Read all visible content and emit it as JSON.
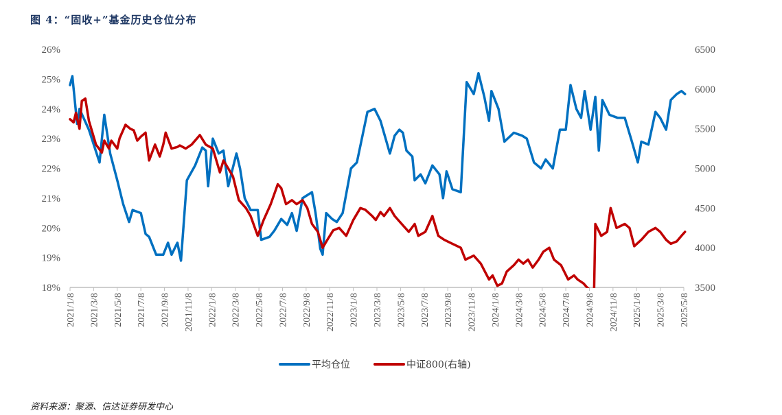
{
  "title": "图 4：“固收+”基金历史仓位分布",
  "source": "资料来源：聚源、信达证券研发中心",
  "chart_data": {
    "type": "line",
    "x_unit": "months since 2021/1/8",
    "xlim": [
      0,
      52
    ],
    "x_tick_labels": [
      "2021/1/8",
      "2021/3/8",
      "2021/5/8",
      "2021/7/8",
      "2021/9/8",
      "2021/11/8",
      "2022/1/8",
      "2022/3/8",
      "2022/5/8",
      "2022/7/8",
      "2022/9/8",
      "2022/11/8",
      "2023/1/8",
      "2023/3/8",
      "2023/5/8",
      "2023/7/8",
      "2023/9/8",
      "2023/11/8",
      "2024/1/8",
      "2024/3/8",
      "2024/5/8",
      "2024/7/8",
      "2024/9/8",
      "2024/11/8",
      "2025/1/8",
      "2025/3/8",
      "2025/5/8"
    ],
    "y_left": {
      "lim": [
        18,
        26
      ],
      "ticks": [
        "18%",
        "19%",
        "20%",
        "21%",
        "22%",
        "23%",
        "24%",
        "25%",
        "26%"
      ]
    },
    "y_right": {
      "lim": [
        3500,
        6500
      ],
      "ticks": [
        "3500",
        "4000",
        "4500",
        "5000",
        "5500",
        "6000",
        "6500"
      ]
    },
    "legend_position": "bottom-center",
    "series": [
      {
        "name": "平均仓位",
        "axis": "left",
        "color": "#0070C0",
        "points": [
          [
            0,
            24.8
          ],
          [
            0.2,
            25.1
          ],
          [
            0.6,
            23.5
          ],
          [
            0.8,
            24.0
          ],
          [
            1.6,
            23.3
          ],
          [
            2.5,
            22.2
          ],
          [
            2.9,
            23.8
          ],
          [
            3.4,
            22.5
          ],
          [
            4.0,
            21.6
          ],
          [
            4.5,
            20.8
          ],
          [
            5.0,
            20.2
          ],
          [
            5.3,
            20.6
          ],
          [
            6.0,
            20.5
          ],
          [
            6.4,
            19.8
          ],
          [
            6.7,
            19.7
          ],
          [
            7.3,
            19.1
          ],
          [
            7.9,
            19.1
          ],
          [
            8.3,
            19.5
          ],
          [
            8.6,
            19.1
          ],
          [
            9.1,
            19.5
          ],
          [
            9.4,
            18.9
          ],
          [
            9.9,
            21.6
          ],
          [
            10.6,
            22.1
          ],
          [
            11.2,
            22.7
          ],
          [
            11.5,
            22.6
          ],
          [
            11.7,
            21.4
          ],
          [
            12.1,
            23.0
          ],
          [
            12.6,
            22.5
          ],
          [
            13.0,
            22.6
          ],
          [
            13.4,
            21.4
          ],
          [
            14.1,
            22.5
          ],
          [
            14.4,
            22.0
          ],
          [
            14.8,
            21.0
          ],
          [
            15.3,
            20.6
          ],
          [
            15.9,
            20.6
          ],
          [
            16.2,
            19.6
          ],
          [
            16.9,
            19.7
          ],
          [
            17.3,
            19.9
          ],
          [
            17.9,
            20.3
          ],
          [
            18.4,
            20.1
          ],
          [
            18.8,
            20.5
          ],
          [
            19.2,
            19.9
          ],
          [
            19.7,
            21.0
          ],
          [
            20.1,
            21.1
          ],
          [
            20.5,
            21.2
          ],
          [
            20.8,
            20.5
          ],
          [
            21.2,
            19.3
          ],
          [
            21.4,
            19.1
          ],
          [
            21.7,
            20.5
          ],
          [
            22.2,
            20.3
          ],
          [
            22.6,
            20.2
          ],
          [
            23.1,
            20.5
          ],
          [
            23.8,
            22.0
          ],
          [
            24.3,
            22.2
          ],
          [
            25.2,
            23.9
          ],
          [
            25.8,
            24.0
          ],
          [
            26.3,
            23.6
          ],
          [
            27.1,
            22.5
          ],
          [
            27.5,
            23.1
          ],
          [
            27.9,
            23.3
          ],
          [
            28.2,
            23.2
          ],
          [
            28.5,
            22.6
          ],
          [
            29.0,
            22.4
          ],
          [
            29.2,
            21.6
          ],
          [
            29.7,
            21.8
          ],
          [
            30.1,
            21.5
          ],
          [
            30.7,
            22.1
          ],
          [
            31.3,
            21.8
          ],
          [
            31.6,
            21.0
          ],
          [
            31.9,
            21.9
          ],
          [
            32.4,
            21.3
          ],
          [
            33.1,
            21.2
          ],
          [
            33.6,
            24.9
          ],
          [
            34.2,
            24.5
          ],
          [
            34.6,
            25.2
          ],
          [
            35.1,
            24.4
          ],
          [
            35.5,
            23.6
          ],
          [
            35.7,
            24.6
          ],
          [
            36.3,
            24.0
          ],
          [
            36.8,
            22.9
          ],
          [
            37.6,
            23.2
          ],
          [
            38.3,
            23.1
          ],
          [
            38.7,
            23.0
          ],
          [
            39.3,
            22.2
          ],
          [
            39.9,
            22.0
          ],
          [
            40.3,
            22.3
          ],
          [
            40.9,
            22.0
          ],
          [
            41.5,
            23.3
          ],
          [
            42.0,
            23.3
          ],
          [
            42.4,
            24.8
          ],
          [
            42.9,
            24.0
          ],
          [
            43.3,
            23.7
          ],
          [
            43.6,
            24.6
          ],
          [
            44.1,
            23.3
          ],
          [
            44.5,
            24.4
          ],
          [
            44.8,
            22.6
          ],
          [
            45.1,
            24.3
          ],
          [
            45.7,
            23.8
          ],
          [
            46.4,
            23.7
          ],
          [
            47.0,
            23.7
          ],
          [
            47.6,
            22.9
          ],
          [
            48.1,
            22.2
          ],
          [
            48.4,
            22.9
          ],
          [
            49.0,
            22.8
          ],
          [
            49.6,
            23.9
          ],
          [
            50.0,
            23.7
          ],
          [
            50.5,
            23.3
          ],
          [
            50.9,
            24.3
          ],
          [
            51.4,
            24.5
          ],
          [
            51.8,
            24.6
          ],
          [
            52.1,
            24.5
          ]
        ]
      },
      {
        "name": "中证800(右轴)",
        "axis": "right",
        "color": "#C00000",
        "points": [
          [
            0,
            5620
          ],
          [
            0.3,
            5580
          ],
          [
            0.5,
            5700
          ],
          [
            0.8,
            5500
          ],
          [
            1.0,
            5850
          ],
          [
            1.3,
            5880
          ],
          [
            1.6,
            5600
          ],
          [
            2.2,
            5300
          ],
          [
            2.7,
            5200
          ],
          [
            2.9,
            5350
          ],
          [
            3.3,
            5250
          ],
          [
            3.5,
            5350
          ],
          [
            4.0,
            5250
          ],
          [
            4.2,
            5380
          ],
          [
            4.7,
            5550
          ],
          [
            5.1,
            5500
          ],
          [
            5.4,
            5480
          ],
          [
            5.7,
            5350
          ],
          [
            6.0,
            5400
          ],
          [
            6.4,
            5450
          ],
          [
            6.7,
            5100
          ],
          [
            7.2,
            5300
          ],
          [
            7.6,
            5150
          ],
          [
            7.9,
            5300
          ],
          [
            8.1,
            5450
          ],
          [
            8.6,
            5250
          ],
          [
            9.1,
            5270
          ],
          [
            9.3,
            5290
          ],
          [
            9.8,
            5250
          ],
          [
            10.3,
            5300
          ],
          [
            11.0,
            5420
          ],
          [
            11.5,
            5300
          ],
          [
            12.1,
            5250
          ],
          [
            12.7,
            4950
          ],
          [
            13.0,
            5100
          ],
          [
            13.4,
            5000
          ],
          [
            13.8,
            4900
          ],
          [
            14.3,
            4600
          ],
          [
            14.9,
            4500
          ],
          [
            15.3,
            4400
          ],
          [
            15.9,
            4150
          ],
          [
            16.4,
            4350
          ],
          [
            17.0,
            4550
          ],
          [
            17.6,
            4800
          ],
          [
            17.9,
            4750
          ],
          [
            18.3,
            4550
          ],
          [
            18.8,
            4600
          ],
          [
            19.2,
            4550
          ],
          [
            19.7,
            4600
          ],
          [
            20.1,
            4500
          ],
          [
            20.5,
            4300
          ],
          [
            21.0,
            4200
          ],
          [
            21.4,
            4000
          ],
          [
            21.8,
            4100
          ],
          [
            22.3,
            4220
          ],
          [
            22.8,
            4250
          ],
          [
            23.4,
            4150
          ],
          [
            24.0,
            4350
          ],
          [
            24.6,
            4500
          ],
          [
            25.0,
            4480
          ],
          [
            25.6,
            4400
          ],
          [
            25.9,
            4350
          ],
          [
            26.3,
            4450
          ],
          [
            26.6,
            4400
          ],
          [
            27.1,
            4500
          ],
          [
            27.5,
            4400
          ],
          [
            28.1,
            4300
          ],
          [
            28.7,
            4200
          ],
          [
            29.2,
            4300
          ],
          [
            29.5,
            4150
          ],
          [
            30.1,
            4200
          ],
          [
            30.7,
            4400
          ],
          [
            31.2,
            4150
          ],
          [
            31.7,
            4100
          ],
          [
            32.4,
            4050
          ],
          [
            33.1,
            4000
          ],
          [
            33.5,
            3850
          ],
          [
            34.2,
            3900
          ],
          [
            34.8,
            3800
          ],
          [
            35.5,
            3600
          ],
          [
            35.8,
            3650
          ],
          [
            36.2,
            3520
          ],
          [
            36.6,
            3550
          ],
          [
            37.0,
            3700
          ],
          [
            37.6,
            3780
          ],
          [
            38.0,
            3850
          ],
          [
            38.4,
            3800
          ],
          [
            38.8,
            3850
          ],
          [
            39.2,
            3750
          ],
          [
            39.7,
            3850
          ],
          [
            40.1,
            3950
          ],
          [
            40.6,
            4000
          ],
          [
            41.0,
            3850
          ],
          [
            41.6,
            3780
          ],
          [
            42.2,
            3600
          ],
          [
            42.7,
            3650
          ],
          [
            43.0,
            3600
          ],
          [
            43.5,
            3550
          ],
          [
            43.8,
            3500
          ],
          [
            44.2,
            3450
          ],
          [
            44.4,
            3450
          ],
          [
            44.5,
            4300
          ],
          [
            45.0,
            4150
          ],
          [
            45.5,
            4200
          ],
          [
            45.8,
            4500
          ],
          [
            46.3,
            4250
          ],
          [
            47.0,
            4300
          ],
          [
            47.4,
            4250
          ],
          [
            47.8,
            4020
          ],
          [
            48.4,
            4100
          ],
          [
            49.0,
            4200
          ],
          [
            49.6,
            4250
          ],
          [
            50.0,
            4200
          ],
          [
            50.5,
            4100
          ],
          [
            50.9,
            4050
          ],
          [
            51.4,
            4080
          ],
          [
            51.8,
            4150
          ],
          [
            52.1,
            4200
          ]
        ]
      }
    ]
  }
}
